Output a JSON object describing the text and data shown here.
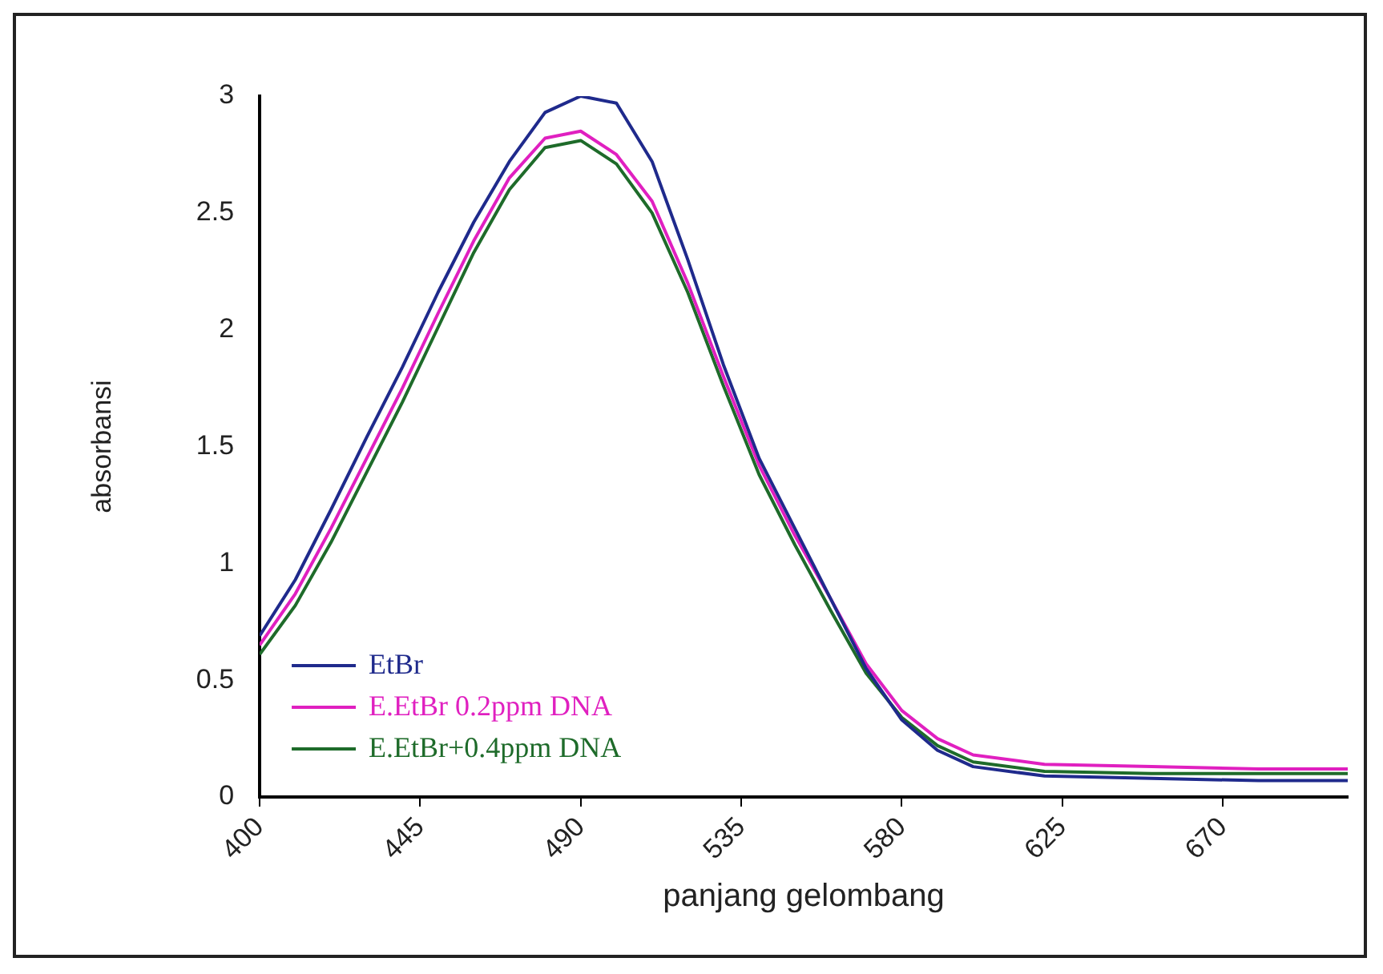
{
  "chart_data": {
    "type": "line",
    "xlabel": "panjang gelombang",
    "ylabel": "absorbansi",
    "xlim": [
      400,
      705
    ],
    "xticks": [
      400,
      445,
      490,
      535,
      580,
      625,
      670
    ],
    "ylim": [
      0,
      3
    ],
    "yticks": [
      0,
      0.5,
      1,
      1.5,
      2,
      2.5,
      3
    ],
    "grid": false,
    "legend": "bottom left",
    "series": [
      {
        "name": "EtBr",
        "color": "#1f2a8c",
        "x": [
          400,
          410,
          420,
          430,
          440,
          450,
          460,
          470,
          480,
          490,
          500,
          510,
          520,
          530,
          540,
          550,
          560,
          570,
          580,
          590,
          600,
          620,
          650,
          680,
          705
        ],
        "values": [
          0.69,
          0.93,
          1.23,
          1.54,
          1.84,
          2.16,
          2.46,
          2.72,
          2.93,
          3.0,
          2.97,
          2.72,
          2.3,
          1.85,
          1.45,
          1.15,
          0.85,
          0.55,
          0.33,
          0.2,
          0.13,
          0.09,
          0.08,
          0.07,
          0.07
        ]
      },
      {
        "name": "E.EtBr 0.2ppm DNA",
        "color": "#e020c0",
        "x": [
          400,
          410,
          420,
          430,
          440,
          450,
          460,
          470,
          480,
          490,
          500,
          510,
          520,
          530,
          540,
          550,
          560,
          570,
          580,
          590,
          600,
          620,
          650,
          680,
          705
        ],
        "values": [
          0.65,
          0.87,
          1.15,
          1.45,
          1.75,
          2.07,
          2.38,
          2.65,
          2.82,
          2.85,
          2.75,
          2.55,
          2.2,
          1.8,
          1.42,
          1.12,
          0.85,
          0.57,
          0.37,
          0.25,
          0.18,
          0.14,
          0.13,
          0.12,
          0.12
        ]
      },
      {
        "name": "E.EtBr+0.4ppm DNA",
        "color": "#1e6b2a",
        "x": [
          400,
          410,
          420,
          430,
          440,
          450,
          460,
          470,
          480,
          490,
          500,
          510,
          520,
          530,
          540,
          550,
          560,
          570,
          580,
          590,
          600,
          620,
          650,
          680,
          705
        ],
        "values": [
          0.61,
          0.82,
          1.09,
          1.39,
          1.69,
          2.01,
          2.33,
          2.6,
          2.78,
          2.81,
          2.71,
          2.5,
          2.16,
          1.76,
          1.38,
          1.08,
          0.8,
          0.53,
          0.34,
          0.22,
          0.15,
          0.11,
          0.1,
          0.1,
          0.1
        ]
      }
    ]
  }
}
